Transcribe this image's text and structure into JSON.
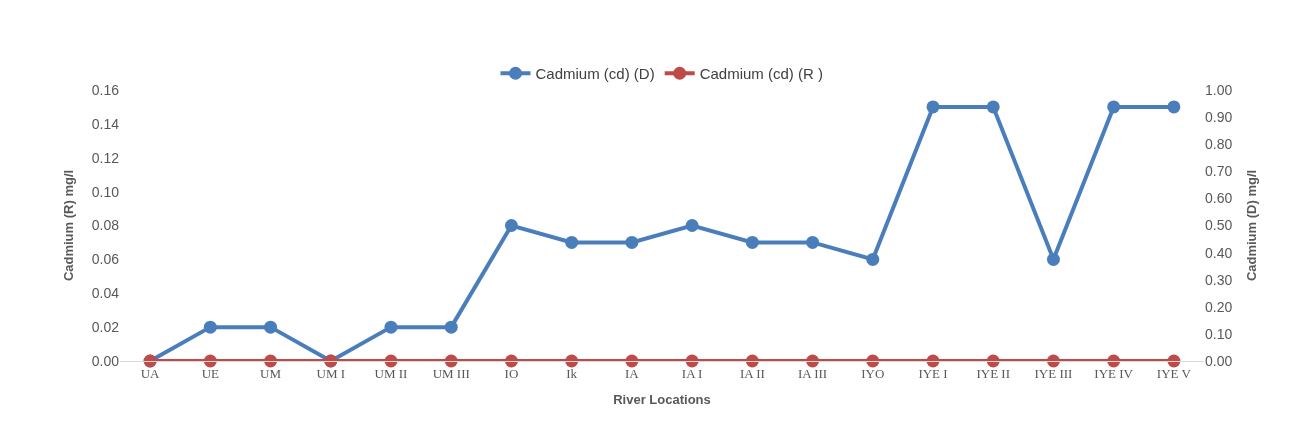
{
  "chart_data": {
    "type": "line",
    "xlabel": "River Locations",
    "ylabel": "Cadmium (R) mg/l",
    "y2label": "Cadmium (D) mg/l",
    "categories": [
      "UA",
      "UE",
      "UM",
      "UM I",
      "UM II",
      "UM III",
      "IO",
      "Ik",
      "IA",
      "IA I",
      "IA II",
      "IA III",
      "IYO",
      "IYE I",
      "IYE II",
      "IYE III",
      "IYE IV",
      "IYE V"
    ],
    "series": [
      {
        "name": "Cadmium (cd) (D)",
        "color": "#4a7ebb",
        "values": [
          0,
          0.02,
          0.02,
          0,
          0.02,
          0.02,
          0.08,
          0.07,
          0.07,
          0.08,
          0.07,
          0.07,
          0.06,
          0.15,
          0.15,
          0.06,
          0.15,
          0.15
        ]
      },
      {
        "name": "Cadmium (cd) (R )",
        "color": "#be4b48",
        "axis": "y2",
        "values": [
          0,
          0,
          0,
          0,
          0,
          0,
          0,
          0,
          0,
          0,
          0,
          0,
          0,
          0,
          0,
          0,
          0,
          0
        ]
      }
    ],
    "ylim": [
      0,
      0.16
    ],
    "yticks": [
      {
        "value": 0,
        "label": "0.00"
      },
      {
        "value": 0.02,
        "label": "0.02"
      },
      {
        "value": 0.04,
        "label": "0.04"
      },
      {
        "value": 0.06,
        "label": "0.06"
      },
      {
        "value": 0.08,
        "label": "0.08"
      },
      {
        "value": 0.1,
        "label": "0.10"
      },
      {
        "value": 0.12,
        "label": "0.12"
      },
      {
        "value": 0.14,
        "label": "0.14"
      },
      {
        "value": 0.16,
        "label": "0.16"
      }
    ],
    "y2lim": [
      0,
      1
    ],
    "y2ticks": [
      {
        "value": 0,
        "label": "0.00"
      },
      {
        "value": 0.1,
        "label": "0.10"
      },
      {
        "value": 0.2,
        "label": "0.20"
      },
      {
        "value": 0.3,
        "label": "0.30"
      },
      {
        "value": 0.4,
        "label": "0.40"
      },
      {
        "value": 0.5,
        "label": "0.50"
      },
      {
        "value": 0.6,
        "label": "0.60"
      },
      {
        "value": 0.7,
        "label": "0.70"
      },
      {
        "value": 0.8,
        "label": "0.80"
      },
      {
        "value": 0.9,
        "label": "0.90"
      },
      {
        "value": 1,
        "label": "1.00"
      }
    ],
    "legend": "top",
    "marker": "circle",
    "line_style": "solid"
  }
}
